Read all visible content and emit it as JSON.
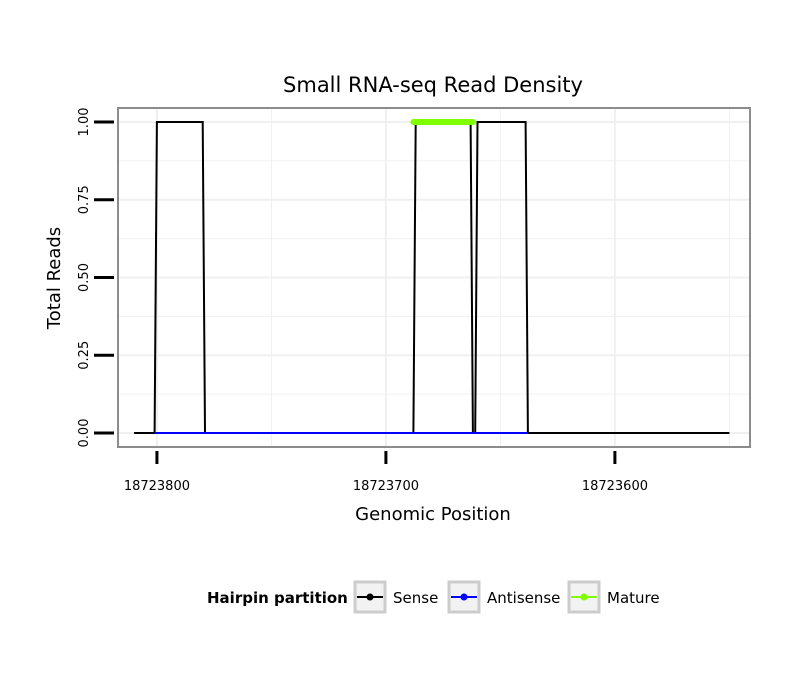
{
  "chart_data": {
    "type": "line",
    "title": "Small RNA-seq Read Density",
    "xlabel": "Genomic Position",
    "ylabel": "Total Reads",
    "x_reversed": true,
    "xlim": [
      18723817,
      18723541
    ],
    "ylim": [
      -0.045,
      1.045
    ],
    "x_ticks": [
      18723800,
      18723700,
      18723600
    ],
    "x_tick_labels": [
      "18723800",
      "18723700",
      "18723600"
    ],
    "y_ticks": [
      0,
      0.25,
      0.5,
      0.75,
      1.0
    ],
    "y_tick_labels": [
      "0.00",
      "0.25",
      "0.50",
      "0.75",
      "1.00"
    ],
    "grid": true,
    "series": [
      {
        "name": "Sense",
        "color": "#000000",
        "x": [
          18723810,
          18723801,
          18723800,
          18723780,
          18723779,
          18723688,
          18723687,
          18723663,
          18723662,
          18723661,
          18723660,
          18723639,
          18723638,
          18723550
        ],
        "y": [
          0,
          0,
          1,
          1,
          0,
          0,
          1,
          1,
          0,
          0,
          1,
          1,
          0,
          0
        ]
      },
      {
        "name": "Antisense",
        "color": "#0000ff",
        "x": [
          18723801,
          18723779,
          18723779,
          18723688,
          18723688,
          18723638
        ],
        "y": [
          0,
          0,
          0,
          0,
          0,
          0
        ]
      },
      {
        "name": "Mature",
        "color": "#7fff00",
        "x": [
          18723688,
          18723662
        ],
        "y": [
          1,
          1
        ]
      }
    ],
    "legend": {
      "title": "Hairpin partition",
      "position": "bottom",
      "entries": [
        {
          "label": "Sense",
          "color": "#000000"
        },
        {
          "label": "Antisense",
          "color": "#0000ff"
        },
        {
          "label": "Mature",
          "color": "#7fff00"
        }
      ]
    }
  }
}
